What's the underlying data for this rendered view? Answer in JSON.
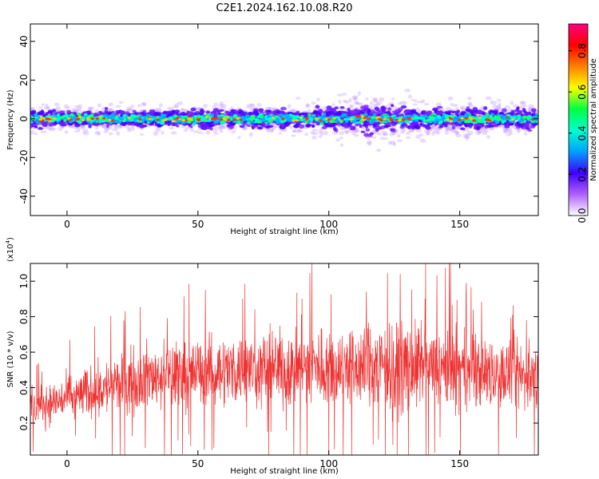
{
  "figure": {
    "title": "C2E1.2024.162.10.08.R20"
  },
  "chart_data": [
    {
      "type": "heatmap",
      "title": "",
      "xlabel": "Height of straight line (km)",
      "ylabel": "Frequency (Hz)",
      "xlim": [
        -14,
        180
      ],
      "ylim": [
        -50,
        49
      ],
      "xticks": [
        "0",
        "50",
        "100",
        "150"
      ],
      "yticks": [
        "-40",
        "-20",
        "0",
        "20",
        "40"
      ],
      "band_center_hz": 0,
      "band_halfwidth_hz": [
        {
          "x": -14,
          "hw": 4
        },
        {
          "x": 60,
          "hw": 4
        },
        {
          "x": 100,
          "hw": 5
        },
        {
          "x": 110,
          "hw": 7
        },
        {
          "x": 125,
          "hw": 7
        },
        {
          "x": 140,
          "hw": 5
        },
        {
          "x": 180,
          "hw": 5
        }
      ],
      "colorbar": {
        "label": "Normalized spectral amplitude",
        "range": [
          0,
          0.93
        ],
        "ticks": [
          "0.0",
          "0.2",
          "0.4",
          "0.6",
          "0.8"
        ],
        "colormap": "rainbow",
        "colors": [
          "#ffffff",
          "#b060ff",
          "#4000ff",
          "#00a0ff",
          "#00ffd0",
          "#00ff40",
          "#ffff00",
          "#ff8000",
          "#ff0000",
          "#ff0080"
        ]
      }
    },
    {
      "type": "line",
      "title": "",
      "xlabel": "Height of straight line (km)",
      "ylabel": "SNR (10 * v/v)",
      "scale_label_base": "(x10",
      "scale_label_exp": "4",
      "scale_label_tail": ")",
      "xlim": [
        -14,
        180
      ],
      "ylim": [
        0.02,
        1.1
      ],
      "xticks": [
        "0",
        "50",
        "100",
        "150"
      ],
      "yticks": [
        "0.2",
        "0.4",
        "0.6",
        "0.8",
        "1.0"
      ],
      "line_color": "#ee3333",
      "envelope": [
        {
          "x": -14,
          "mean": 0.28,
          "spread": 0.12
        },
        {
          "x": 0,
          "mean": 0.34,
          "spread": 0.14
        },
        {
          "x": 15,
          "mean": 0.4,
          "spread": 0.18
        },
        {
          "x": 30,
          "mean": 0.46,
          "spread": 0.2
        },
        {
          "x": 60,
          "mean": 0.5,
          "spread": 0.22
        },
        {
          "x": 100,
          "mean": 0.52,
          "spread": 0.26
        },
        {
          "x": 130,
          "mean": 0.52,
          "spread": 0.28
        },
        {
          "x": 160,
          "mean": 0.48,
          "spread": 0.24
        },
        {
          "x": 180,
          "mean": 0.46,
          "spread": 0.22
        }
      ]
    }
  ]
}
